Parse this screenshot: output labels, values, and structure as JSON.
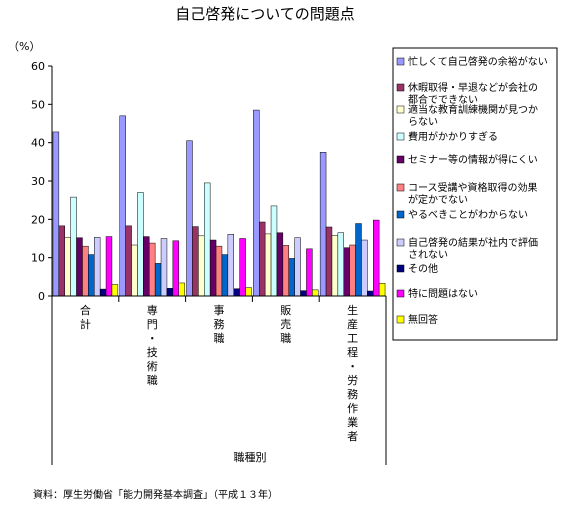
{
  "chart_data": {
    "type": "bar",
    "title": "自己啓発についての問題点",
    "ylabel": "（%）",
    "xlabel": "職種別",
    "ylim": [
      0,
      60
    ],
    "yticks": [
      0,
      10,
      20,
      30,
      40,
      50,
      60
    ],
    "grid": false,
    "legend_position": "right",
    "categories": [
      "合計",
      "専門・技術職",
      "事務職",
      "販売職",
      "生産工程・労務作業者"
    ],
    "category_labels": [
      [
        "合",
        "計"
      ],
      [
        "専",
        "門",
        "・",
        "技",
        "術",
        "職"
      ],
      [
        "事",
        "務",
        "職"
      ],
      [
        "販",
        "売",
        "職"
      ],
      [
        "生",
        "産",
        "工",
        "程",
        "・",
        "労",
        "務",
        "作",
        "業",
        "者"
      ]
    ],
    "series": [
      {
        "name": "忙しくて自己啓発の余裕がない",
        "legend_lines": [
          "忙しくて自己啓発の余裕がない"
        ],
        "color": "#9999ff",
        "values": [
          42.8,
          47.0,
          40.5,
          48.5,
          37.5
        ]
      },
      {
        "name": "休暇取得・早退などが会社の都合でできない",
        "legend_lines": [
          "休暇取得・早退などが会社の",
          "都合でできない"
        ],
        "color": "#993366",
        "values": [
          18.3,
          18.3,
          18.1,
          19.3,
          18.0
        ]
      },
      {
        "name": "適当な教育訓練機関が見つからない",
        "legend_lines": [
          "適当な教育訓練機関が見つか",
          "らない"
        ],
        "color": "#ffffcc",
        "values": [
          15.2,
          13.3,
          15.7,
          16.2,
          15.8
        ]
      },
      {
        "name": "費用がかかりすぎる",
        "legend_lines": [
          "費用がかかりすぎる"
        ],
        "color": "#ccffff",
        "values": [
          25.8,
          27.0,
          29.5,
          23.5,
          16.5
        ]
      },
      {
        "name": "セミナー等の情報が得にくい",
        "legend_lines": [
          "セミナー等の情報が得にくい"
        ],
        "color": "#660066",
        "values": [
          15.2,
          15.5,
          14.6,
          16.5,
          12.6
        ]
      },
      {
        "name": "コース受講や資格取得の効果が定かでない",
        "legend_lines": [
          "コース受講や資格取得の効果",
          "が定かでない"
        ],
        "color": "#ff8080",
        "values": [
          13.0,
          13.8,
          13.0,
          13.2,
          13.3
        ]
      },
      {
        "name": "やるべきことがわからない",
        "legend_lines": [
          "やるべきことがわからない"
        ],
        "color": "#0066cc",
        "values": [
          10.8,
          8.5,
          10.8,
          9.8,
          18.9
        ]
      },
      {
        "name": "自己啓発の結果が社内で評価されない",
        "legend_lines": [
          "自己啓発の結果が社内で評価",
          "されない"
        ],
        "color": "#ccccff",
        "values": [
          15.3,
          15.0,
          16.1,
          15.2,
          14.6
        ]
      },
      {
        "name": "その他",
        "legend_lines": [
          "その他"
        ],
        "color": "#000080",
        "values": [
          1.8,
          2.0,
          1.9,
          1.4,
          1.3
        ]
      },
      {
        "name": "特に問題はない",
        "legend_lines": [
          "特に問題はない"
        ],
        "color": "#ff00ff",
        "values": [
          15.5,
          14.4,
          15.0,
          12.3,
          19.8
        ]
      },
      {
        "name": "無回答",
        "legend_lines": [
          "無回答"
        ],
        "color": "#ffff00",
        "values": [
          3.0,
          3.4,
          2.2,
          1.6,
          3.3
        ]
      }
    ]
  },
  "source_note": "資料：厚生労働省「能力開発基本調査」（平成１３年）"
}
